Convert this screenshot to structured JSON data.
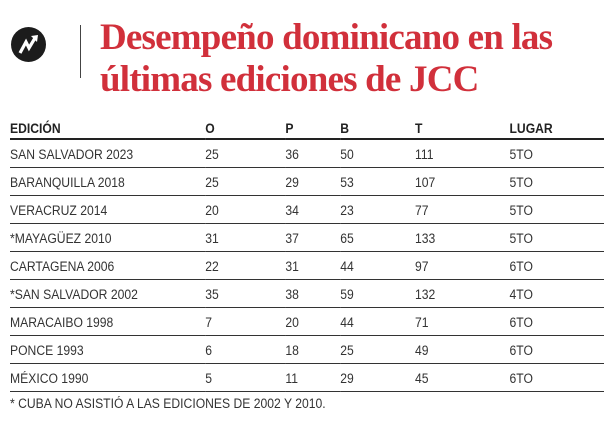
{
  "header": {
    "title_line1": "Desempeño dominicano en las",
    "title_line2": "últimas ediciones de JCC",
    "logo_icon": "trend-arrow-icon",
    "title_color": "#d1303b"
  },
  "table": {
    "columns": [
      "EDICIÓN",
      "O",
      "P",
      "B",
      "T",
      "LUGAR"
    ],
    "rows": [
      [
        "SAN SALVADOR 2023",
        "25",
        "36",
        "50",
        "111",
        "5TO"
      ],
      [
        "BARANQUILLA 2018",
        "25",
        "29",
        "53",
        "107",
        "5TO"
      ],
      [
        "VERACRUZ 2014",
        "20",
        "34",
        "23",
        "77",
        "5TO"
      ],
      [
        "*MAYAGÜEZ 2010",
        "31",
        "37",
        "65",
        "133",
        "5TO"
      ],
      [
        "CARTAGENA 2006",
        "22",
        "31",
        "44",
        "97",
        "6TO"
      ],
      [
        "*SAN SALVADOR 2002",
        "35",
        "38",
        "59",
        "132",
        "4TO"
      ],
      [
        "MARACAIBO 1998",
        "7",
        "20",
        "44",
        "71",
        "6TO"
      ],
      [
        "PONCE 1993",
        "6",
        "18",
        "25",
        "49",
        "6TO"
      ],
      [
        "MÉXICO 1990",
        "5",
        "11",
        "29",
        "45",
        "6TO"
      ]
    ]
  },
  "footnote": "* CUBA NO ASISTIÓ A LAS EDICIONES DE 2002 Y 2010."
}
